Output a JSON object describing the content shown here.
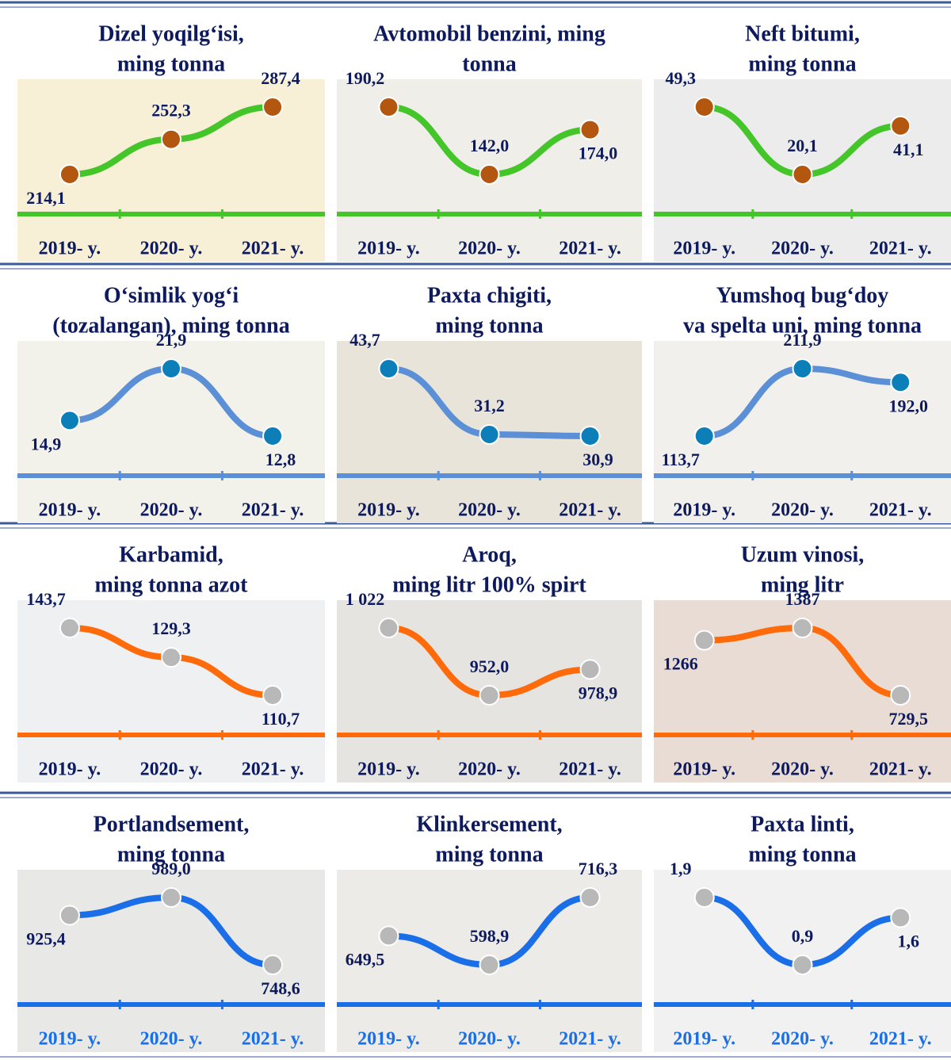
{
  "chart_data": [
    {
      "type": "line",
      "title": [
        "Dizel yoqilg‘isi,",
        "ming tonna"
      ],
      "categories": [
        "2019- y.",
        "2020- y.",
        "2021- y."
      ],
      "values": [
        214.1,
        252.3,
        287.4
      ],
      "value_labels": [
        "214,1",
        "252,3",
        "287,4"
      ],
      "color": "#44c52a",
      "marker_color": "#b3560f",
      "label_color": "#0d1a5e"
    },
    {
      "type": "line",
      "title": [
        "Avtomobil benzini, ming",
        "tonna"
      ],
      "categories": [
        "2019- y.",
        "2020- y.",
        "2021- y."
      ],
      "values": [
        190.2,
        142.0,
        174.0
      ],
      "value_labels": [
        "190,2",
        "142,0",
        "174,0"
      ],
      "color": "#44c52a",
      "marker_color": "#b3560f",
      "label_color": "#0d1a5e"
    },
    {
      "type": "line",
      "title": [
        "Neft bitumi,",
        "ming tonna"
      ],
      "categories": [
        "2019- y.",
        "2020- y.",
        "2021- y."
      ],
      "values": [
        49.3,
        20.1,
        41.1
      ],
      "value_labels": [
        "49,3",
        "20,1",
        "41,1"
      ],
      "color": "#44c52a",
      "marker_color": "#b3560f",
      "label_color": "#0d1a5e"
    },
    {
      "type": "line",
      "title": [
        "O‘simlik yog‘i",
        "(tozalangan), ming tonna"
      ],
      "categories": [
        "2019- y.",
        "2020- y.",
        "2021- y."
      ],
      "values": [
        14.9,
        21.9,
        12.8
      ],
      "value_labels": [
        "14,9",
        "21,9",
        "12,8"
      ],
      "color": "#5b8fd6",
      "marker_color": "#0d7fb8",
      "label_color": "#0d1a5e"
    },
    {
      "type": "line",
      "title": [
        "Paxta chigiti,",
        "ming tonna"
      ],
      "categories": [
        "2019- y.",
        "2020- y.",
        "2021- y."
      ],
      "values": [
        43.7,
        31.2,
        30.9
      ],
      "value_labels": [
        "43,7",
        "31,2",
        "30,9"
      ],
      "color": "#5b8fd6",
      "marker_color": "#0d7fb8",
      "label_color": "#0d1a5e"
    },
    {
      "type": "line",
      "title": [
        "Yumshoq bug‘doy",
        "va spelta uni, ming tonna"
      ],
      "categories": [
        "2019- y.",
        "2020- y.",
        "2021- y."
      ],
      "values": [
        113.7,
        211.9,
        192.0
      ],
      "value_labels": [
        "113,7",
        "211,9",
        "192,0"
      ],
      "color": "#5b8fd6",
      "marker_color": "#0d7fb8",
      "label_color": "#0d1a5e"
    },
    {
      "type": "line",
      "title": [
        "Karbamid,",
        "ming tonna azot"
      ],
      "categories": [
        "2019- y.",
        "2020- y.",
        "2021- y."
      ],
      "values": [
        143.7,
        129.3,
        110.7
      ],
      "value_labels": [
        "143,7",
        "129,3",
        "110,7"
      ],
      "color": "#ff6a0a",
      "marker_color": "#b8b8b8",
      "label_color": "#0d1a5e"
    },
    {
      "type": "line",
      "title": [
        "Aroq,",
        "ming litr 100% spirt"
      ],
      "categories": [
        "2019- y.",
        "2020- y.",
        "2021- y."
      ],
      "values": [
        1022,
        952.0,
        978.9
      ],
      "value_labels": [
        "1 022",
        "952,0",
        "978,9"
      ],
      "color": "#ff6a0a",
      "marker_color": "#b8b8b8",
      "label_color": "#0d1a5e"
    },
    {
      "type": "line",
      "title": [
        "Uzum vinosi,",
        "ming litr"
      ],
      "categories": [
        "2019- y.",
        "2020- y.",
        "2021- y."
      ],
      "values": [
        1266,
        1387,
        729.5
      ],
      "value_labels": [
        "1266",
        "1387",
        "729,5"
      ],
      "color": "#ff6a0a",
      "marker_color": "#b8b8b8",
      "label_color": "#0d1a5e"
    },
    {
      "type": "line",
      "title": [
        "Portlandsement,",
        "ming tonna"
      ],
      "categories": [
        "2019- y.",
        "2020- y.",
        "2021- y."
      ],
      "values": [
        925.4,
        989.0,
        748.6
      ],
      "value_labels": [
        "925,4",
        "989,0",
        "748,6"
      ],
      "color": "#1a6fe8",
      "marker_color": "#b8b8b8",
      "label_color": "#1a6fe8"
    },
    {
      "type": "line",
      "title": [
        "Klinkersement,",
        "ming tonna"
      ],
      "categories": [
        "2019- y.",
        "2020- y.",
        "2021- y."
      ],
      "values": [
        649.5,
        598.9,
        716.3
      ],
      "value_labels": [
        "649,5",
        "598,9",
        "716,3"
      ],
      "color": "#1a6fe8",
      "marker_color": "#b8b8b8",
      "label_color": "#1a6fe8"
    },
    {
      "type": "line",
      "title": [
        "Paxta linti,",
        "ming tonna"
      ],
      "categories": [
        "2019- y.",
        "2020- y.",
        "2021- y."
      ],
      "values": [
        1.9,
        0.9,
        1.6
      ],
      "value_labels": [
        "1,9",
        "0,9",
        "1,6"
      ],
      "color": "#1a6fe8",
      "marker_color": "#b8b8b8",
      "label_color": "#1a6fe8"
    }
  ]
}
